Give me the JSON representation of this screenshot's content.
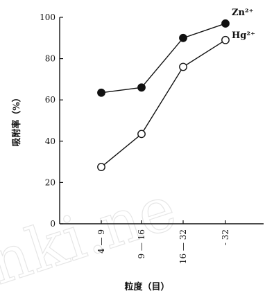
{
  "chart_data": {
    "type": "line",
    "categories": [
      "4 — 9",
      "9 — 16",
      "16 — 32",
      "- 32"
    ],
    "series": [
      {
        "name": "Zn²⁺",
        "marker": "filled",
        "values": [
          63.5,
          66,
          90,
          97
        ]
      },
      {
        "name": "Hg²⁺",
        "marker": "open",
        "values": [
          27.5,
          43.5,
          76,
          89
        ]
      }
    ],
    "xlabel": "粒度（目）",
    "ylabel": "吸附率（%）",
    "ylim": [
      0,
      100
    ],
    "yticks": [
      0,
      20,
      40,
      60,
      80,
      100
    ],
    "grid": false,
    "legend": "inline-right",
    "colors": {
      "line": "#111111",
      "axis": "#111111"
    }
  },
  "watermark": "nki.ne"
}
